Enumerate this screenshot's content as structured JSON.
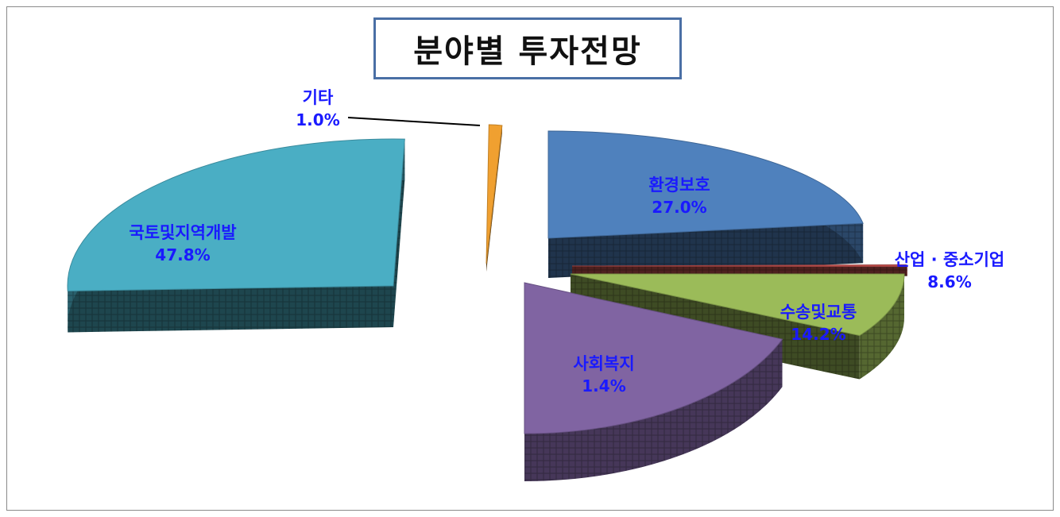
{
  "chart_data": {
    "type": "pie",
    "title": "분야별 투자전망",
    "label_color": "#1a1aff",
    "slices": [
      {
        "label": "국토및지역개발",
        "value": 47.8,
        "value_label": "47.8%",
        "color": "#4aaec4"
      },
      {
        "label": "기타",
        "value": 1.0,
        "value_label": "1.0%",
        "color": "#f0a030"
      },
      {
        "label": "환경보호",
        "value": 27.0,
        "value_label": "27.0%",
        "color": "#4f81bd"
      },
      {
        "label": "산업 · 중소기업",
        "value": 8.6,
        "value_label": "8.6%",
        "color": "#c0504d"
      },
      {
        "label": "수송및교통",
        "value": 14.2,
        "value_label": "14.2%",
        "color": "#9bbb59"
      },
      {
        "label": "사회복지",
        "value": 1.4,
        "value_label": "1.4%",
        "color": "#8064a2"
      }
    ]
  }
}
